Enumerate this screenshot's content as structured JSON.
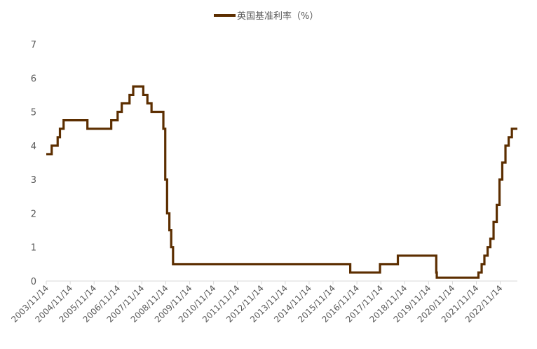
{
  "chart_data": {
    "type": "line",
    "title": "",
    "xlabel": "",
    "ylabel": "",
    "ylim": [
      0,
      7
    ],
    "yticks": [
      0,
      1,
      2,
      3,
      4,
      5,
      6,
      7
    ],
    "xlim": [
      "2003-11-14",
      "2023-08-03"
    ],
    "xtick_labels": [
      "2003/11/14",
      "2004/11/14",
      "2005/11/14",
      "2006/11/14",
      "2007/11/14",
      "2008/11/14",
      "2009/11/14",
      "2010/11/14",
      "2011/11/14",
      "2012/11/14",
      "2013/11/14",
      "2014/11/14",
      "2015/11/14",
      "2016/11/14",
      "2017/11/14",
      "2018/11/14",
      "2019/11/14",
      "2020/11/14",
      "2021/11/14",
      "2022/11/14"
    ],
    "grid": false,
    "legend_position": "top",
    "line_style": "step",
    "series": [
      {
        "name": "英国基准利率（%）",
        "color": "#5c2e00",
        "points": [
          [
            "2003-11-14",
            3.75
          ],
          [
            "2004-02-05",
            4.0
          ],
          [
            "2004-05-06",
            4.25
          ],
          [
            "2004-06-10",
            4.5
          ],
          [
            "2004-08-05",
            4.75
          ],
          [
            "2005-08-04",
            4.5
          ],
          [
            "2006-08-03",
            4.75
          ],
          [
            "2006-11-09",
            5.0
          ],
          [
            "2007-01-11",
            5.25
          ],
          [
            "2007-05-10",
            5.5
          ],
          [
            "2007-07-05",
            5.75
          ],
          [
            "2007-12-06",
            5.5
          ],
          [
            "2008-02-07",
            5.25
          ],
          [
            "2008-04-10",
            5.0
          ],
          [
            "2008-10-08",
            4.5
          ],
          [
            "2008-11-06",
            3.0
          ],
          [
            "2008-12-04",
            2.0
          ],
          [
            "2009-01-08",
            1.5
          ],
          [
            "2009-02-05",
            1.0
          ],
          [
            "2009-03-05",
            0.5
          ],
          [
            "2016-08-04",
            0.25
          ],
          [
            "2017-11-02",
            0.5
          ],
          [
            "2018-08-02",
            0.75
          ],
          [
            "2020-03-11",
            0.25
          ],
          [
            "2020-03-19",
            0.1
          ],
          [
            "2021-12-16",
            0.25
          ],
          [
            "2022-02-03",
            0.5
          ],
          [
            "2022-03-17",
            0.75
          ],
          [
            "2022-05-05",
            1.0
          ],
          [
            "2022-06-16",
            1.25
          ],
          [
            "2022-08-04",
            1.75
          ],
          [
            "2022-09-22",
            2.25
          ],
          [
            "2022-11-03",
            3.0
          ],
          [
            "2022-12-15",
            3.5
          ],
          [
            "2023-02-02",
            4.0
          ],
          [
            "2023-03-23",
            4.25
          ],
          [
            "2023-05-11",
            4.5
          ],
          [
            "2023-08-03",
            4.5
          ]
        ]
      }
    ]
  }
}
